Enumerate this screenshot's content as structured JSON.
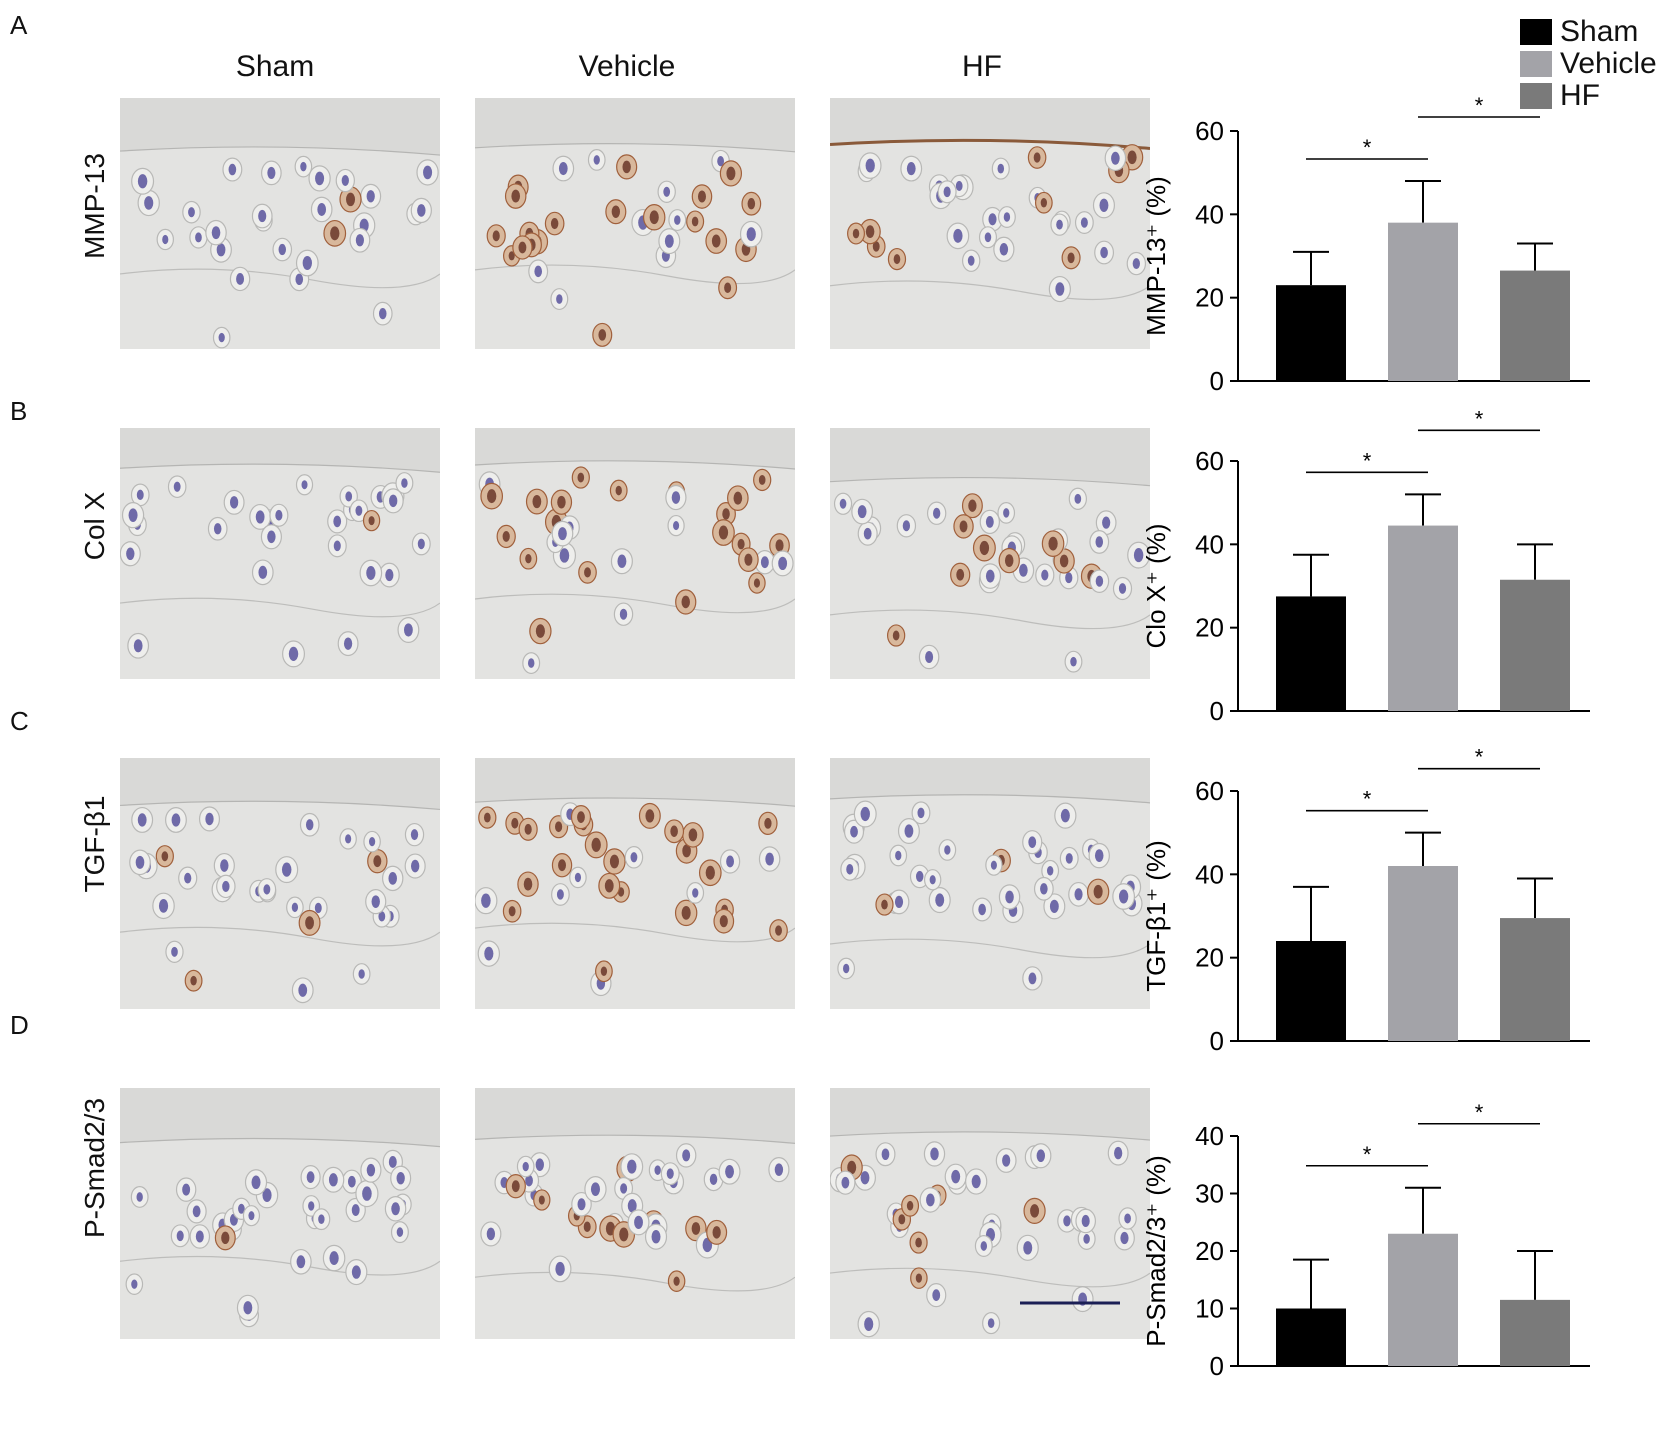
{
  "panels": [
    "A",
    "B",
    "C",
    "D"
  ],
  "columns": [
    "Sham",
    "Vehicle",
    "HF"
  ],
  "rows": [
    "MMP-13",
    "Col X",
    "TGF-β1",
    "P-Smad2/3"
  ],
  "legend": [
    {
      "label": "Sham",
      "color": "#000000"
    },
    {
      "label": "Vehicle",
      "color": "#a3a3a8"
    },
    {
      "label": "HF",
      "color": "#7a7a7a"
    }
  ],
  "colors": {
    "sham": "#000000",
    "vehicle": "#a3a3a8",
    "hf": "#7a7a7a",
    "tissue": "#e3e3e1",
    "nucleus": "#6f6aa8",
    "stain": "#a0603c"
  },
  "chart_data": [
    {
      "type": "bar",
      "panel": "A",
      "categories": [
        "Sham",
        "Vehicle",
        "HF"
      ],
      "values": [
        23,
        38,
        26.5
      ],
      "errors": [
        8,
        10,
        6.5
      ],
      "ylabel": "MMP-13⁺ (%)",
      "ylim": [
        0,
        60
      ],
      "yticks": [
        0,
        20,
        40,
        60
      ],
      "significance": [
        {
          "from": 0,
          "to": 1,
          "label": "*"
        },
        {
          "from": 1,
          "to": 2,
          "label": "*"
        }
      ]
    },
    {
      "type": "bar",
      "panel": "B",
      "categories": [
        "Sham",
        "Vehicle",
        "HF"
      ],
      "values": [
        27.5,
        44.5,
        31.5
      ],
      "errors": [
        10,
        7.5,
        8.5
      ],
      "ylabel": "Clo X⁺ (%)",
      "ylim": [
        0,
        60
      ],
      "yticks": [
        0,
        20,
        40,
        60
      ],
      "significance": [
        {
          "from": 0,
          "to": 1,
          "label": "*"
        },
        {
          "from": 1,
          "to": 2,
          "label": "*"
        }
      ]
    },
    {
      "type": "bar",
      "panel": "C",
      "categories": [
        "Sham",
        "Vehicle",
        "HF"
      ],
      "values": [
        24,
        42,
        29.5
      ],
      "errors": [
        13,
        8,
        9.5
      ],
      "ylabel": "TGF-β1⁺ (%)",
      "ylim": [
        0,
        60
      ],
      "yticks": [
        0,
        20,
        40,
        60
      ],
      "significance": [
        {
          "from": 0,
          "to": 1,
          "label": "*"
        },
        {
          "from": 1,
          "to": 2,
          "label": "*"
        }
      ]
    },
    {
      "type": "bar",
      "panel": "D",
      "categories": [
        "Sham",
        "Vehicle",
        "HF"
      ],
      "values": [
        10,
        23,
        11.5
      ],
      "errors": [
        8.5,
        8,
        8.5
      ],
      "ylabel": "P-Smad2/3⁺ (%)",
      "ylim": [
        0,
        40
      ],
      "yticks": [
        0,
        10,
        20,
        30,
        40
      ],
      "significance": [
        {
          "from": 0,
          "to": 1,
          "label": "*"
        },
        {
          "from": 1,
          "to": 2,
          "label": "*"
        }
      ]
    }
  ]
}
